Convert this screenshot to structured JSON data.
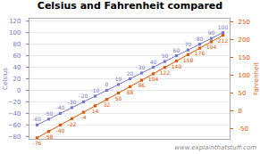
{
  "chart_data": {
    "type": "line",
    "title": "Celsius and Fahrenheit compared",
    "categories": [
      null,
      null,
      null,
      null,
      null,
      null,
      null,
      null,
      null,
      null,
      null,
      null,
      null,
      null,
      null,
      null,
      null
    ],
    "series": [
      {
        "name": "Celsius",
        "color": "#7777cc",
        "marker": "square",
        "values": [
          -60,
          -50,
          -40,
          -30,
          -20,
          -10,
          0,
          10,
          20,
          30,
          40,
          50,
          60,
          70,
          80,
          90,
          100
        ]
      },
      {
        "name": "Fahrenheit",
        "color": "#dd5500",
        "marker": "square",
        "axis": "y2",
        "values": [
          -76,
          -58,
          -40,
          -22,
          -4,
          14,
          32,
          50,
          68,
          86,
          104,
          122,
          140,
          158,
          176,
          194,
          212
        ]
      }
    ],
    "ylabel": "Celsius",
    "y2label": "Fahrenheit",
    "ylim": [
      -85,
      125
    ],
    "yticks": [
      -80,
      -60,
      -40,
      -20,
      0,
      20,
      40,
      60,
      80,
      100,
      120
    ],
    "y2lim": [
      -80,
      260
    ],
    "y2ticks": [
      -50,
      0,
      50,
      100,
      150,
      200,
      250
    ],
    "grid": true,
    "data_labels": true,
    "tick_labels": "y",
    "annotations": [
      "www.explainthatstuff.com"
    ]
  }
}
